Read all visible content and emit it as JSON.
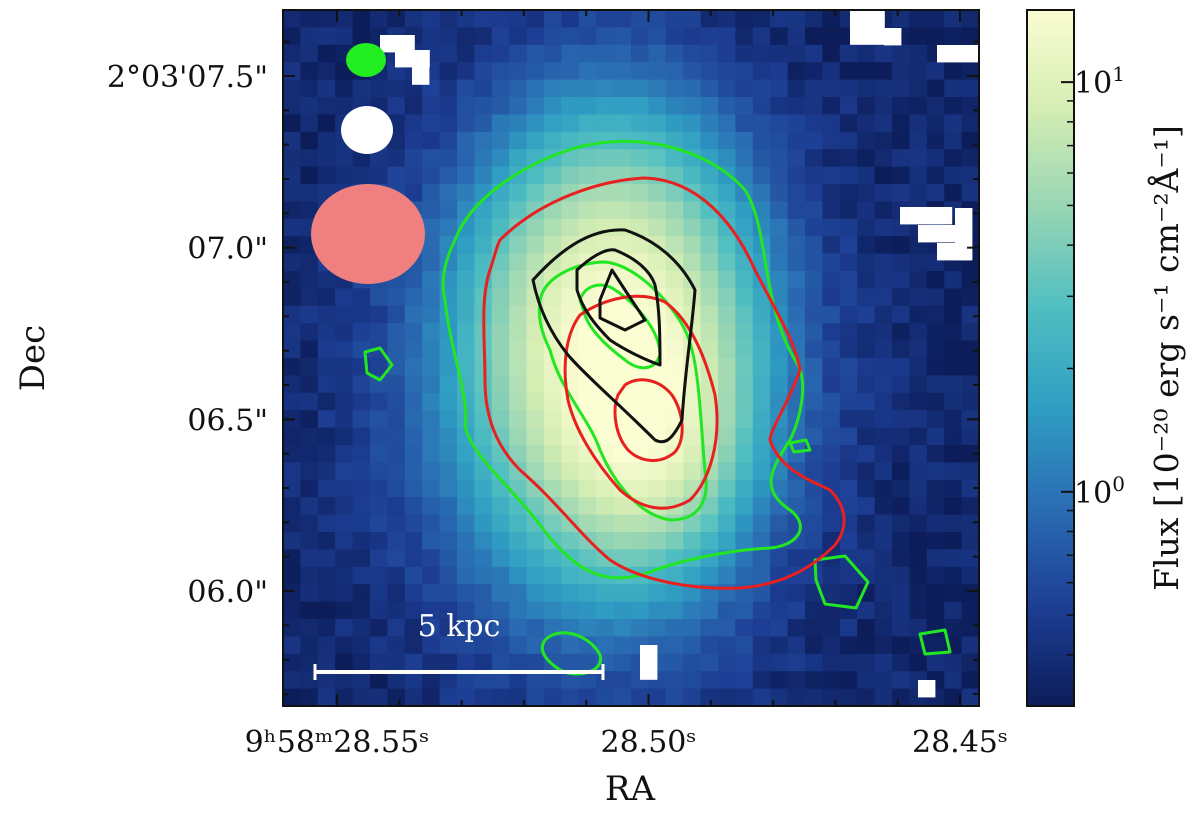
{
  "chart_data": {
    "type": "heatmap",
    "title": "",
    "xlabel": "RA",
    "ylabel": "Dec",
    "colorbar_label": "Flux [10⁻²⁰ erg s⁻¹ cm⁻²Å⁻¹]",
    "colorbar_scale": "log",
    "colorbar_range": [
      0.3,
      15
    ],
    "colorbar_ticks": [
      {
        "value": 10,
        "label_base": "10",
        "label_exp": "1"
      },
      {
        "value": 1,
        "label_base": "10",
        "label_exp": "0"
      }
    ],
    "colormap": [
      "#0c1d5a",
      "#1d3e94",
      "#2a6db3",
      "#2f9ec3",
      "#4fbec1",
      "#97d5b4",
      "#d4edb3",
      "#fbfdd2"
    ],
    "x_ticks": [
      {
        "value": 28.55,
        "text": "9ʰ58ᵐ28.55ˢ"
      },
      {
        "value": 28.5,
        "text": "28.50ˢ"
      },
      {
        "value": 28.45,
        "text": "28.45ˢ"
      }
    ],
    "y_ticks": [
      {
        "value": 7.5,
        "text": "2°03'07.5\""
      },
      {
        "value": 7.0,
        "text": "07.0\""
      },
      {
        "value": 6.5,
        "text": "06.5\""
      },
      {
        "value": 6.0,
        "text": "06.0\""
      }
    ],
    "scale_bar": {
      "label": "5 kpc",
      "color": "#ffffff"
    },
    "beams": [
      {
        "name": "beam-green",
        "color": "#22ee22"
      },
      {
        "name": "beam-white",
        "color": "#ffffff"
      },
      {
        "name": "beam-red",
        "color": "#f08080"
      }
    ],
    "contour_colors": {
      "green": "#22e622",
      "red": "#e82020",
      "black": "#111111"
    },
    "peak_flux": 14,
    "background_flux": 0.3
  }
}
